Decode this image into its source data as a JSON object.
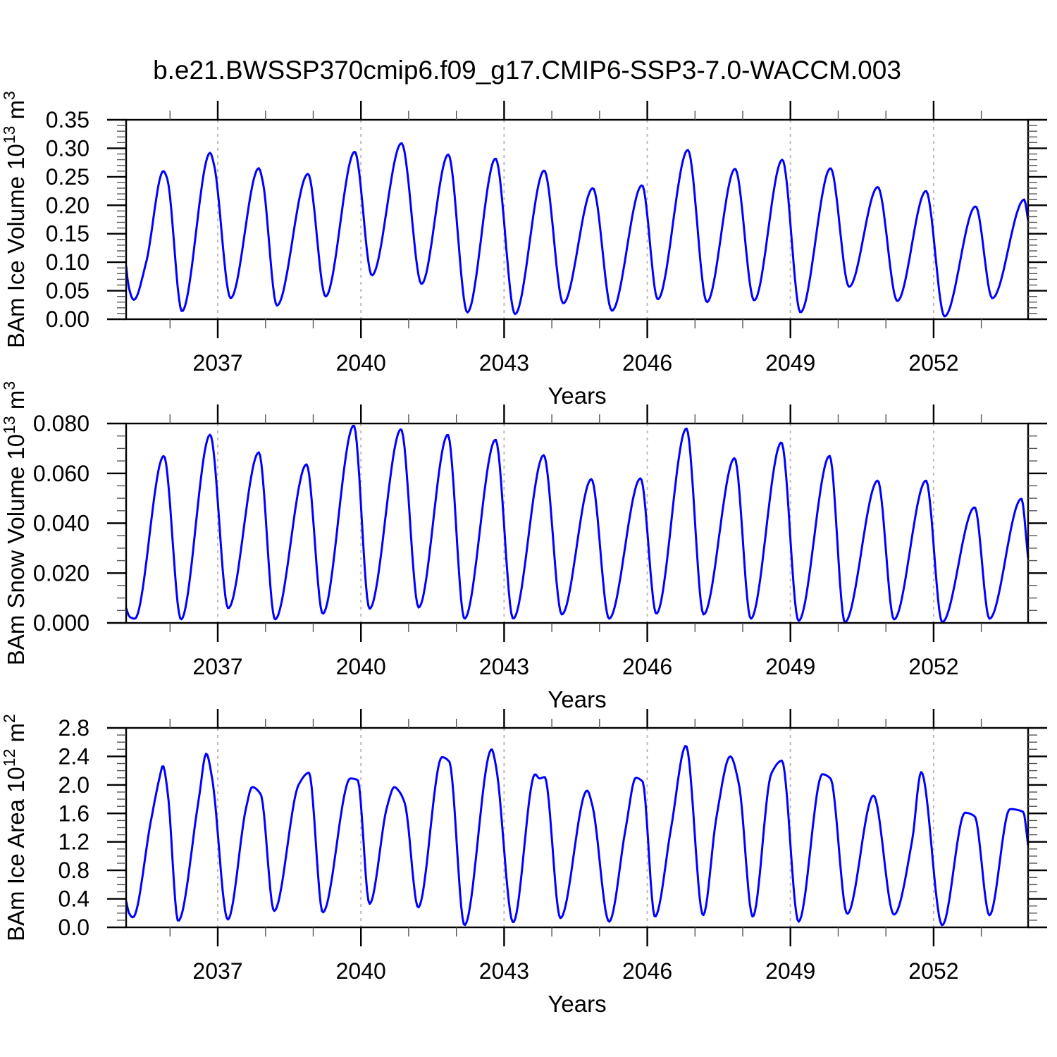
{
  "title": "b.e21.BWSSP370cmip6.f09_g17.CMIP6-SSP3-7.0-WACCM.003",
  "background": "#ffffff",
  "axis_color": "#000000",
  "grid_color": "#bbbbbb",
  "line_color": "#0000ff",
  "chart_data": [
    {
      "type": "line",
      "id": "ice-volume",
      "ylabel": "BAm Ice Volume 10^13 m^3",
      "ylabel_segments": [
        {
          "t": "BAm Ice Volume 10"
        },
        {
          "t": "13",
          "sup": true
        },
        {
          "t": " m"
        },
        {
          "t": "3",
          "sup": true
        }
      ],
      "xlabel": "Years",
      "xlim": [
        2035.08,
        2053.98
      ],
      "ylim": [
        0,
        0.35
      ],
      "yticks": {
        "major_step": 0.05,
        "minor_step": 0.01,
        "decimals": 2
      },
      "xticks": {
        "major": [
          2037,
          2040,
          2043,
          2046,
          2049,
          2052
        ],
        "minor_step": 1,
        "grid_on_major": true
      },
      "legend": "none",
      "series": [
        {
          "name": "BAm Ice Volume",
          "color": "#0000ff",
          "x": [
            2035.08,
            2035.13,
            2035.24,
            2035.5,
            2035.86,
            2035.94,
            2036.25,
            2036.84,
            2036.92,
            2037.27,
            2037.86,
            2037.94,
            2038.24,
            2038.89,
            2039.26,
            2039.87,
            2040.23,
            2040.85,
            2041.27,
            2041.83,
            2042.23,
            2042.82,
            2043.23,
            2043.84,
            2044.24,
            2044.86,
            2045.26,
            2045.89,
            2046.22,
            2046.85,
            2047.25,
            2047.84,
            2048.24,
            2048.83,
            2049.21,
            2049.84,
            2050.23,
            2050.83,
            2051.24,
            2051.84,
            2052.23,
            2052.88,
            2053.23,
            2053.9,
            2053.98
          ],
          "y": [
            0.094,
            0.058,
            0.034,
            0.1,
            0.26,
            0.247,
            0.014,
            0.292,
            0.272,
            0.037,
            0.265,
            0.243,
            0.024,
            0.255,
            0.04,
            0.294,
            0.077,
            0.309,
            0.062,
            0.289,
            0.012,
            0.282,
            0.009,
            0.261,
            0.028,
            0.23,
            0.015,
            0.235,
            0.035,
            0.297,
            0.03,
            0.264,
            0.033,
            0.28,
            0.012,
            0.265,
            0.057,
            0.232,
            0.032,
            0.225,
            0.005,
            0.198,
            0.037,
            0.21,
            0.173
          ]
        }
      ]
    },
    {
      "type": "line",
      "id": "snow-volume",
      "ylabel": "BAm Snow Volume 10^13 m^3",
      "ylabel_segments": [
        {
          "t": "BAm Snow Volume 10"
        },
        {
          "t": "13",
          "sup": true
        },
        {
          "t": " m"
        },
        {
          "t": "3",
          "sup": true
        }
      ],
      "xlabel": "Years",
      "xlim": [
        2035.08,
        2053.98
      ],
      "ylim": [
        0,
        0.08
      ],
      "yticks": {
        "major_step": 0.02,
        "minor_step": 0.005,
        "decimals": 3
      },
      "xticks": {
        "major": [
          2037,
          2040,
          2043,
          2046,
          2049,
          2052
        ],
        "minor_step": 1,
        "grid_on_major": true
      },
      "legend": "none",
      "series": [
        {
          "name": "BAm Snow Volume",
          "color": "#0000ff",
          "x": [
            2035.08,
            2035.15,
            2035.26,
            2035.87,
            2036.23,
            2036.84,
            2037.22,
            2037.86,
            2038.2,
            2038.86,
            2039.2,
            2039.85,
            2040.18,
            2040.84,
            2041.21,
            2041.82,
            2042.17,
            2042.82,
            2043.19,
            2043.83,
            2044.21,
            2044.83,
            2045.2,
            2045.86,
            2046.19,
            2046.82,
            2047.18,
            2047.83,
            2048.17,
            2048.81,
            2049.17,
            2049.82,
            2050.14,
            2050.83,
            2051.17,
            2051.84,
            2052.18,
            2052.86,
            2053.17,
            2053.84,
            2053.98
          ],
          "y": [
            0.006,
            0.0025,
            0.0017,
            0.067,
            0.0014,
            0.0755,
            0.0059,
            0.0684,
            0.0014,
            0.0636,
            0.0037,
            0.0792,
            0.0057,
            0.0777,
            0.0062,
            0.0755,
            0.0017,
            0.0735,
            0.0017,
            0.0673,
            0.0034,
            0.0577,
            0.0017,
            0.058,
            0.0037,
            0.078,
            0.0034,
            0.0661,
            0.0017,
            0.0724,
            0.0008,
            0.067,
            0.0003,
            0.0571,
            0.0014,
            0.0571,
            0.0003,
            0.0464,
            0.0017,
            0.0498,
            0.026
          ]
        }
      ]
    },
    {
      "type": "line",
      "id": "ice-area",
      "ylabel": "BAm Ice Area 10^12 m^2",
      "ylabel_segments": [
        {
          "t": "BAm Ice Area 10"
        },
        {
          "t": "12",
          "sup": true
        },
        {
          "t": " m"
        },
        {
          "t": "2",
          "sup": true
        }
      ],
      "xlabel": "Years",
      "xlim": [
        2035.08,
        2053.98
      ],
      "ylim": [
        0,
        2.8
      ],
      "yticks": {
        "major_step": 0.4,
        "minor_step": 0.1,
        "decimals": 1
      },
      "xticks": {
        "major": [
          2037,
          2040,
          2043,
          2046,
          2049,
          2052
        ],
        "minor_step": 1,
        "grid_on_major": true
      },
      "legend": "none",
      "series": [
        {
          "name": "BAm Ice Area",
          "color": "#0000ff",
          "x": [
            2035.08,
            2035.14,
            2035.22,
            2035.6,
            2035.78,
            2035.85,
            2035.95,
            2036.17,
            2036.6,
            2036.76,
            2036.88,
            2037.21,
            2037.6,
            2037.72,
            2037.9,
            2038.18,
            2038.7,
            2038.91,
            2039.2,
            2039.78,
            2039.93,
            2040.18,
            2040.55,
            2040.7,
            2040.8,
            2040.92,
            2041.2,
            2041.7,
            2041.85,
            2042.17,
            2042.74,
            2042.83,
            2043.19,
            2043.65,
            2043.74,
            2043.85,
            2044.18,
            2044.74,
            2044.85,
            2045.2,
            2045.55,
            2045.76,
            2045.9,
            2046.16,
            2046.5,
            2046.81,
            2047.17,
            2047.45,
            2047.74,
            2047.92,
            2048.21,
            2048.6,
            2048.82,
            2049.17,
            2049.67,
            2049.84,
            2050.19,
            2050.74,
            2051.17,
            2051.55,
            2051.74,
            2052.18,
            2052.66,
            2052.86,
            2053.17,
            2053.6,
            2053.88,
            2053.98
          ],
          "y": [
            0.37,
            0.2,
            0.14,
            1.5,
            2.1,
            2.27,
            1.9,
            0.09,
            1.79,
            2.44,
            2.1,
            0.11,
            1.7,
            1.97,
            1.87,
            0.23,
            2.01,
            2.17,
            0.21,
            2.09,
            2.07,
            0.33,
            1.7,
            1.97,
            1.91,
            1.74,
            0.28,
            2.39,
            2.33,
            0.03,
            2.5,
            2.26,
            0.07,
            2.15,
            2.09,
            2.11,
            0.13,
            1.92,
            1.71,
            0.08,
            1.4,
            2.1,
            2.05,
            0.15,
            1.4,
            2.55,
            0.17,
            1.55,
            2.4,
            2.01,
            0.15,
            2.16,
            2.34,
            0.08,
            2.15,
            2.09,
            0.19,
            1.85,
            0.18,
            1.22,
            2.18,
            0.03,
            1.61,
            1.56,
            0.17,
            1.66,
            1.62,
            1.15
          ]
        }
      ]
    }
  ]
}
